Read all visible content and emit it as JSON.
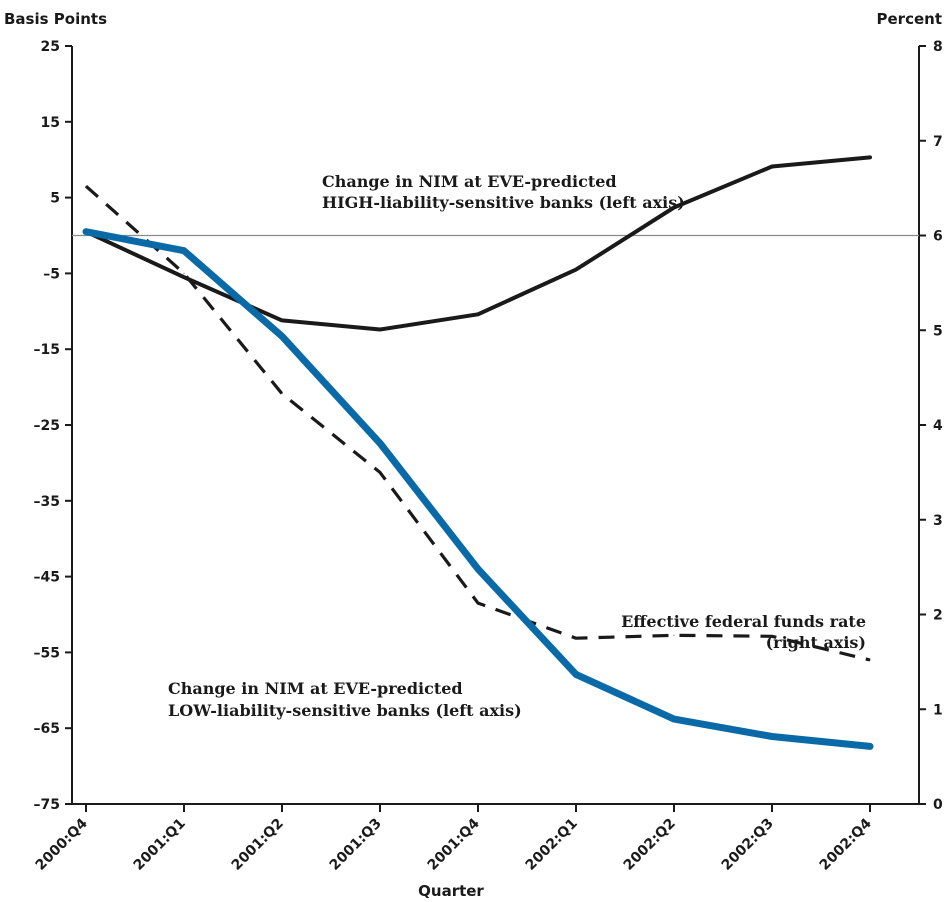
{
  "chart_data": {
    "type": "line",
    "title": "",
    "xlabel": "Quarter",
    "ylabel_left": "Basis Points",
    "ylabel_right": "Percent",
    "categories": [
      "2000:Q4",
      "2001:Q1",
      "2001:Q2",
      "2001:Q3",
      "2001:Q4",
      "2002:Q1",
      "2002:Q2",
      "2002:Q3",
      "2002:Q4"
    ],
    "ylim_left": [
      -75,
      25
    ],
    "yticks_left": [
      "25",
      "15",
      "5",
      "–5",
      "–15",
      "–25",
      "–35",
      "–45",
      "–55",
      "–65",
      "–75"
    ],
    "ylim_right": [
      0,
      8
    ],
    "yticks_right": [
      "8",
      "7",
      "6",
      "5",
      "4",
      "3",
      "2",
      "1",
      "0"
    ],
    "grid": false,
    "series": [
      {
        "id": "high",
        "axis": "left",
        "style": "solid",
        "color": "#1a1a1a",
        "values": [
          0.5,
          -5.5,
          -11.2,
          -12.4,
          -10.4,
          -4.5,
          3.7,
          9.1,
          10.3
        ]
      },
      {
        "id": "low",
        "axis": "left",
        "style": "solid",
        "color": "#0a6aa8",
        "values": [
          0.5,
          -2.0,
          -13.3,
          -27.4,
          -44.0,
          -57.9,
          -63.8,
          -66.1,
          -67.4
        ]
      },
      {
        "id": "fedfunds",
        "axis": "right",
        "style": "dashed",
        "color": "#1a1a1a",
        "values": [
          6.52,
          5.6,
          4.33,
          3.5,
          2.12,
          1.75,
          1.78,
          1.77,
          1.52
        ]
      }
    ],
    "annotations": {
      "high": [
        "Change in NIM at EVE-predicted",
        "HIGH-liability-sensitive banks (left axis)"
      ],
      "low": [
        "Change in NIM at EVE-predicted",
        "LOW-liability-sensitive banks (left axis)"
      ],
      "fedfunds": [
        "Effective federal funds rate",
        "(right axis)"
      ]
    }
  }
}
